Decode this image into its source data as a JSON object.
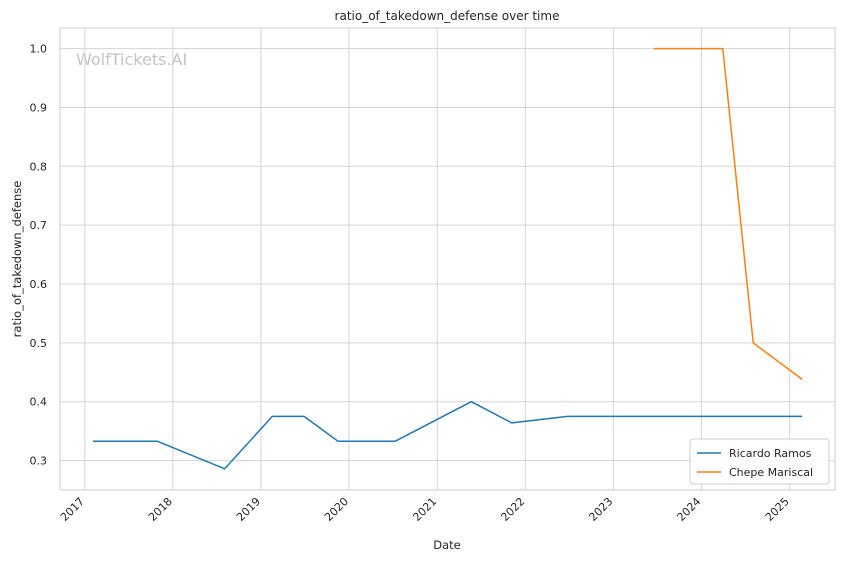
{
  "chart_data": {
    "type": "line",
    "title": "ratio_of_takedown_defense over time",
    "xlabel": "Date",
    "ylabel": "ratio_of_takedown_defense",
    "watermark": "WolfTickets.AI",
    "x_ticks": [
      "2017",
      "2018",
      "2019",
      "2020",
      "2021",
      "2022",
      "2023",
      "2024",
      "2025"
    ],
    "y_ticks": [
      "0.3",
      "0.4",
      "0.5",
      "0.6",
      "0.7",
      "0.8",
      "0.9",
      "1.0"
    ],
    "xlim": [
      "2016-09-20",
      "2025-07-08"
    ],
    "ylim": [
      0.25,
      1.035
    ],
    "grid": true,
    "legend_position": "lower-right",
    "series": [
      {
        "name": "Ricardo Ramos",
        "color": "#1f77b4",
        "points": [
          {
            "x": "2017-02-04",
            "y": 0.333
          },
          {
            "x": "2017-10-28",
            "y": 0.333
          },
          {
            "x": "2018-08-04",
            "y": 0.286
          },
          {
            "x": "2019-02-17",
            "y": 0.375
          },
          {
            "x": "2019-06-29",
            "y": 0.375
          },
          {
            "x": "2019-11-16",
            "y": 0.333
          },
          {
            "x": "2020-07-11",
            "y": 0.333
          },
          {
            "x": "2021-05-22",
            "y": 0.4
          },
          {
            "x": "2021-11-06",
            "y": 0.364
          },
          {
            "x": "2022-06-25",
            "y": 0.375
          },
          {
            "x": "2025-02-22",
            "y": 0.375
          }
        ]
      },
      {
        "name": "Chepe Mariscal",
        "color": "#ff7f0e",
        "points": [
          {
            "x": "2023-06-17",
            "y": 1.0
          },
          {
            "x": "2024-03-30",
            "y": 1.0
          },
          {
            "x": "2024-08-03",
            "y": 0.5
          },
          {
            "x": "2025-02-22",
            "y": 0.438
          }
        ]
      }
    ]
  }
}
